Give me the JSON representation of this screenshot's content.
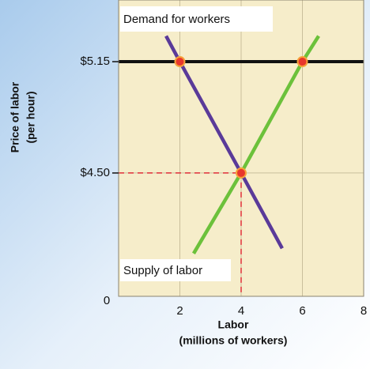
{
  "chart_data": {
    "type": "line",
    "xlabel": [
      "Labor",
      "(millions of workers)"
    ],
    "ylabel": [
      "Price of labor",
      "(per hour)"
    ],
    "xlim": [
      0,
      8
    ],
    "xticks": [
      0,
      2,
      4,
      6,
      8
    ],
    "ylim": [
      3.78,
      5.51
    ],
    "yticks": [
      {
        "value": 4.5,
        "label": "$4.50"
      },
      {
        "value": 5.15,
        "label": "$5.15"
      }
    ],
    "grid": true,
    "series": [
      {
        "name": "Demand for workers",
        "color": "#5a3a99",
        "x": [
          1.55,
          2,
          4,
          5.34
        ],
        "values": [
          5.3,
          5.15,
          4.5,
          4.06
        ]
      },
      {
        "name": "Supply of labor",
        "color": "#6cc13b",
        "x": [
          2.45,
          4,
          6,
          6.53
        ],
        "values": [
          4.03,
          4.5,
          5.15,
          5.3
        ]
      }
    ],
    "points": {
      "color": "#e8362c",
      "x": [
        2,
        6,
        4
      ],
      "values": [
        5.15,
        5.15,
        4.5
      ]
    }
  }
}
